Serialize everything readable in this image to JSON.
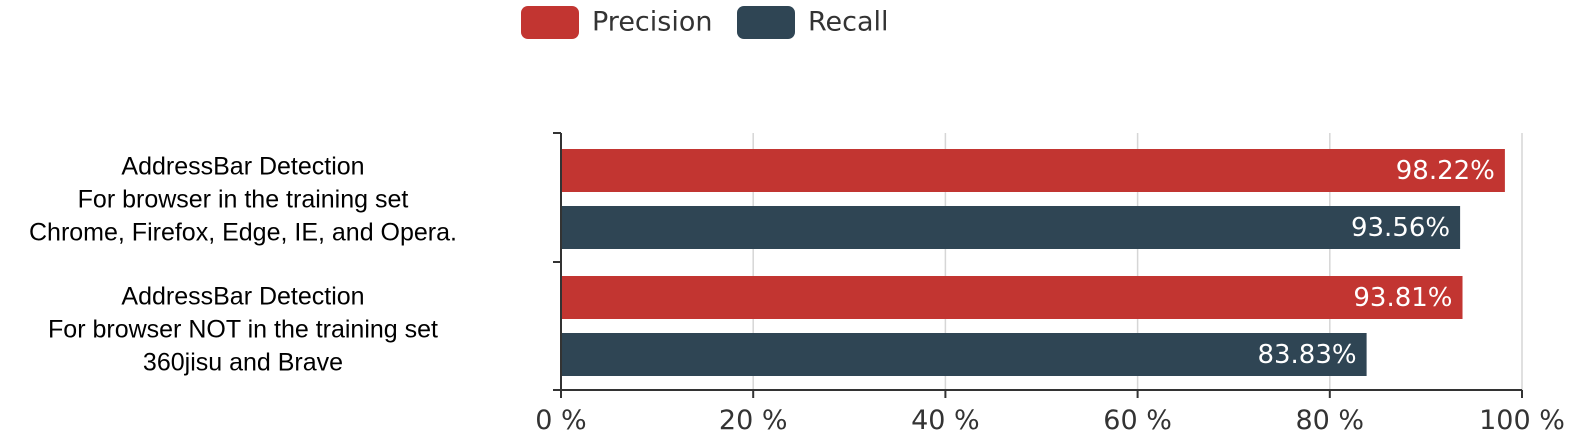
{
  "chart_data": {
    "type": "bar",
    "orientation": "horizontal",
    "categories": [
      {
        "lines": [
          "AddressBar Detection",
          "For browser  in the training set",
          "Chrome, Firefox,  Edge, IE, and Opera."
        ]
      },
      {
        "lines": [
          "AddressBar Detection",
          "For browser NOT in the training set",
          "360jisu and Brave"
        ]
      }
    ],
    "series": [
      {
        "name": "Precision",
        "color": "#c23531",
        "values": [
          98.22,
          93.81
        ],
        "labels": [
          "98.22%",
          "93.81%"
        ]
      },
      {
        "name": "Recall",
        "color": "#2f4554",
        "values": [
          93.56,
          83.83
        ],
        "labels": [
          "93.56%",
          "83.83%"
        ]
      }
    ],
    "xlim": [
      0,
      100
    ],
    "xticks": [
      {
        "value": 0,
        "label": "0 %"
      },
      {
        "value": 20,
        "label": "20 %"
      },
      {
        "value": 40,
        "label": "40 %"
      },
      {
        "value": 60,
        "label": "60 %"
      },
      {
        "value": 80,
        "label": "80 %"
      },
      {
        "value": 100,
        "label": "100 %"
      }
    ],
    "grid": true,
    "legend_position": "top-center"
  }
}
